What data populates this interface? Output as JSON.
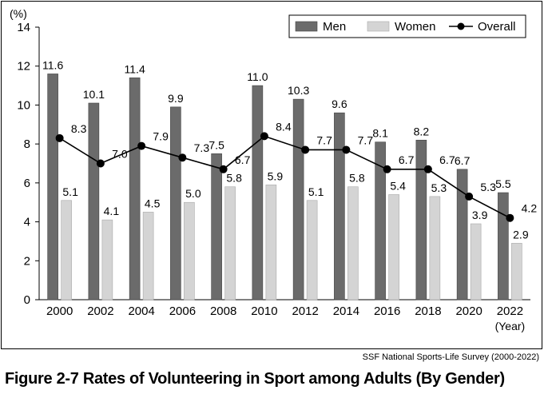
{
  "chart_data": {
    "type": "bar",
    "title": "Figure 2-7  Rates of Volunteering in Sport among Adults (By Gender)",
    "source": "SSF National Sports-Life Survey (2000-2022)",
    "y_unit": "(%)",
    "x_unit": "(Year)",
    "ylim": [
      0,
      14
    ],
    "y_ticks": [
      0,
      2,
      4,
      6,
      8,
      10,
      12,
      14
    ],
    "categories": [
      "2000",
      "2002",
      "2004",
      "2006",
      "2008",
      "2010",
      "2012",
      "2014",
      "2016",
      "2018",
      "2020",
      "2022"
    ],
    "series": [
      {
        "name": "Men",
        "kind": "bar",
        "color": "#6b6b6b",
        "values": [
          11.6,
          10.1,
          11.4,
          9.9,
          7.5,
          11.0,
          10.3,
          9.6,
          8.1,
          8.2,
          6.7,
          5.5
        ],
        "labels": [
          "11.6",
          "10.1",
          "11.4",
          "9.9",
          "7.5",
          "11.0",
          "10.3",
          "9.6",
          "8.1",
          "8.2",
          "6.7",
          "5.5"
        ]
      },
      {
        "name": "Women",
        "kind": "bar",
        "color": "#d4d4d4",
        "values": [
          5.1,
          4.1,
          4.5,
          5.0,
          5.8,
          5.9,
          5.1,
          5.8,
          5.4,
          5.3,
          3.9,
          2.9
        ],
        "labels": [
          "5.1",
          "4.1",
          "4.5",
          "5.0",
          "5.8",
          "5.9",
          "5.1",
          "5.8",
          "5.4",
          "5.3",
          "3.9",
          "2.9"
        ]
      },
      {
        "name": "Overall",
        "kind": "line",
        "color": "#000000",
        "values": [
          8.3,
          7.0,
          7.9,
          7.3,
          6.7,
          8.4,
          7.7,
          7.7,
          6.7,
          6.7,
          5.3,
          4.2
        ],
        "labels": [
          "8.3",
          "7.0",
          "7.9",
          "7.3",
          "6.7",
          "8.4",
          "7.7",
          "7.7",
          "6.7",
          "6.7",
          "5.3",
          "4.2"
        ]
      }
    ],
    "legend_position": "top-right",
    "grid": false
  }
}
